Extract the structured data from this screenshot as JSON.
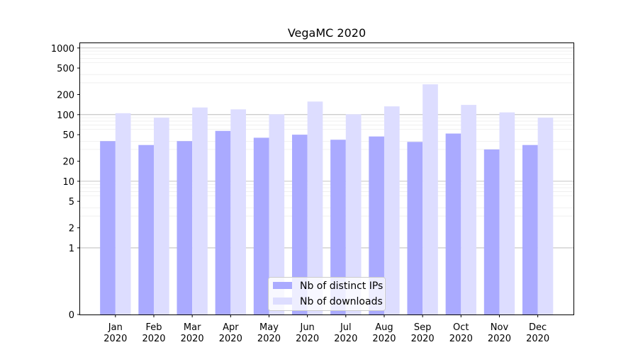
{
  "chart_data": {
    "type": "bar",
    "title": "VegaMC 2020",
    "scale": "symlog",
    "y_ticks": [
      0,
      1,
      2,
      5,
      10,
      20,
      50,
      100,
      200,
      500,
      1000
    ],
    "y_tick_labels": [
      "0",
      "1",
      "2",
      "5",
      "10",
      "20",
      "50",
      "100",
      "200",
      "500",
      "1000"
    ],
    "categories": [
      [
        "Jan",
        "2020"
      ],
      [
        "Feb",
        "2020"
      ],
      [
        "Mar",
        "2020"
      ],
      [
        "Apr",
        "2020"
      ],
      [
        "May",
        "2020"
      ],
      [
        "Jun",
        "2020"
      ],
      [
        "Jul",
        "2020"
      ],
      [
        "Aug",
        "2020"
      ],
      [
        "Sep",
        "2020"
      ],
      [
        "Oct",
        "2020"
      ],
      [
        "Nov",
        "2020"
      ],
      [
        "Dec",
        "2020"
      ]
    ],
    "series": [
      {
        "name": "Nb of distinct IPs",
        "color": "#aaaaff",
        "values": [
          40,
          35,
          40,
          57,
          45,
          50,
          42,
          47,
          39,
          52,
          30,
          35
        ]
      },
      {
        "name": "Nb of downloads",
        "color": "#ddddff",
        "values": [
          105,
          90,
          128,
          120,
          101,
          157,
          101,
          133,
          285,
          140,
          108,
          90
        ]
      }
    ],
    "legend_position": "bottom-center",
    "grid": true
  }
}
